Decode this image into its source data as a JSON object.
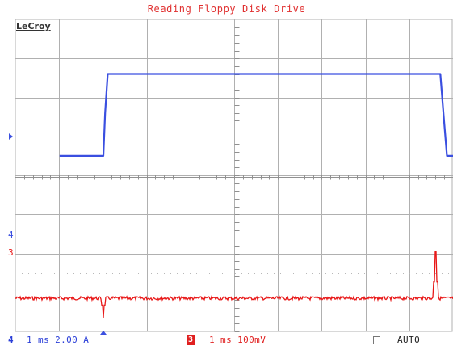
{
  "title": "Reading Floppy Disk Drive",
  "brand": "LeCroy",
  "colors": {
    "grid": "#b0b0b0",
    "grid_dots": "#b8b8b8",
    "channel4": "#3a4fe0",
    "channel3": "#e81818",
    "background": "#ffffff"
  },
  "channels": {
    "ch4": {
      "label": "4",
      "settings": "1 ms 2.00 A",
      "marker_label": "4",
      "marker_icon": "triangle-right-icon"
    },
    "ch3": {
      "label": "3",
      "settings": "1 ms 100mV",
      "marker_label": "3"
    }
  },
  "trigger": {
    "mode": "AUTO",
    "marker_icon": "triangle-up-icon"
  },
  "chart_data": {
    "type": "line",
    "title": "Reading Floppy Disk Drive",
    "grid": true,
    "divisions": {
      "x": 10,
      "y": 8
    },
    "time_per_div_ms": 1,
    "xlim_ms": [
      -1,
      9
    ],
    "series": [
      {
        "name": "4",
        "units_per_div": "2.00 A",
        "note_form": "pulse",
        "x": [
          -1,
          0.0,
          0.04,
          0.1,
          7.7,
          7.78,
          7.85,
          9
        ],
        "y": [
          -0.55,
          -0.55,
          0.55,
          1.55,
          1.55,
          0.4,
          -0.55,
          -0.55
        ]
      },
      {
        "name": "3",
        "units_per_div": "100mV",
        "note_form": "noise-with-spikes",
        "baseline_div": -0.75,
        "noise_div": 0.04,
        "spikes": [
          {
            "x": 0.0,
            "y": -1.25
          },
          {
            "x": 7.6,
            "y": 0.45
          }
        ]
      }
    ]
  }
}
